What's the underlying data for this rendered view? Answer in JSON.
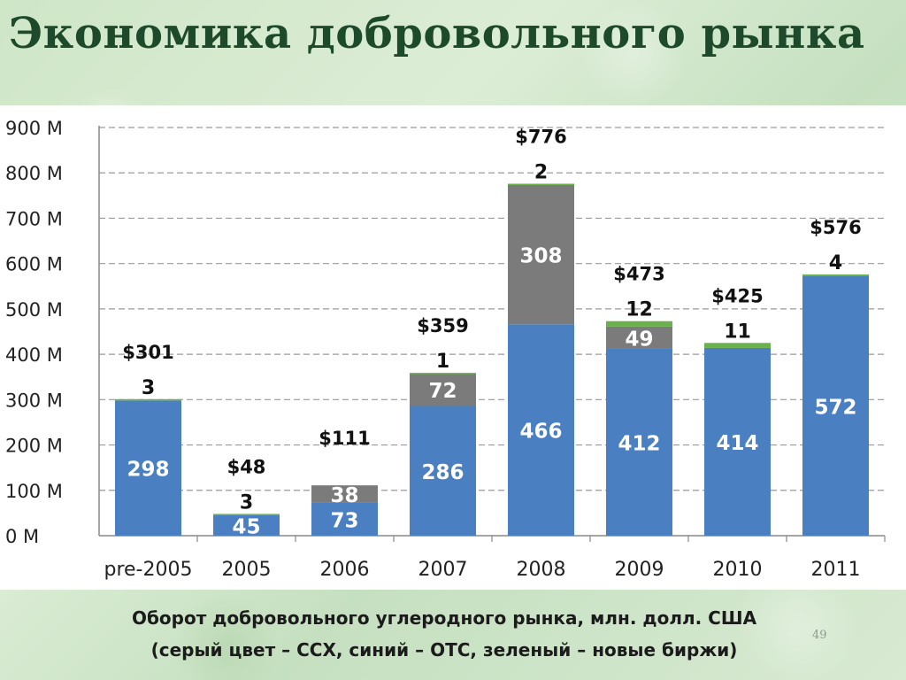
{
  "slide": {
    "title": "Экономика добровольного рынка",
    "caption_line1": "Оборот добровольного углеродного рынка, млн. долл. США",
    "caption_line2": "(серый цвет – ССХ, синий – ОТС, зеленый – новые биржи)",
    "page_number": "49"
  },
  "chart_data": {
    "type": "bar",
    "stacked": true,
    "categories": [
      "pre-2005",
      "2005",
      "2006",
      "2007",
      "2008",
      "2009",
      "2010",
      "2011"
    ],
    "series": [
      {
        "color": "#4a7fc1",
        "values": [
          298,
          45,
          73,
          286,
          466,
          412,
          414,
          572
        ]
      },
      {
        "color": "#7b7b7b",
        "values": [
          0,
          0,
          38,
          72,
          308,
          49,
          0,
          0
        ]
      },
      {
        "color": "#6ab04c",
        "values": [
          3,
          3,
          0,
          1,
          2,
          12,
          11,
          4
        ]
      }
    ],
    "segment_labels": {
      "blue": [
        "298",
        "45",
        "73",
        "286",
        "466",
        "412",
        "414",
        "572"
      ],
      "gray": [
        "",
        "",
        "38",
        "72",
        "308",
        "49",
        "",
        ""
      ],
      "top": [
        "3",
        "3",
        "",
        "1",
        "2",
        "12",
        "11",
        "4"
      ]
    },
    "totals": [
      "$301",
      "$48",
      "$111",
      "$359",
      "$776",
      "$473",
      "$425",
      "$576"
    ],
    "y_ticks": [
      "0 M",
      "100 M",
      "200 M",
      "300 M",
      "400 M",
      "500 M",
      "600 M",
      "700 M",
      "800 M",
      "900 M"
    ],
    "ylim": [
      0,
      900
    ],
    "grid": true
  }
}
